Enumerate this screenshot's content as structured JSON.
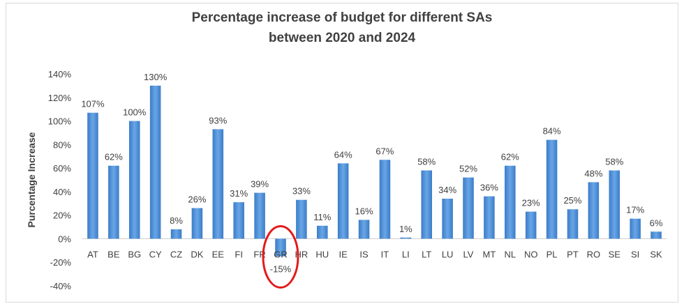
{
  "chart_data": {
    "type": "bar",
    "title": [
      "Percentage increase of budget for different SAs",
      "between 2020 and 2024"
    ],
    "ylabel": "Purcentage Increase",
    "xlabel": "",
    "ylim": [
      -40,
      140
    ],
    "yticks": [
      -40,
      -20,
      0,
      20,
      40,
      60,
      80,
      100,
      120,
      140
    ],
    "ytick_suffix": "%",
    "grid": false,
    "legend": "none",
    "bar_color": "#4f8fd6",
    "highlight_color": "#e21b1b",
    "highlight_category": "GR",
    "categories": [
      "AT",
      "BE",
      "BG",
      "CY",
      "CZ",
      "DK",
      "EE",
      "FI",
      "FR",
      "GR",
      "HR",
      "HU",
      "IE",
      "IS",
      "IT",
      "LI",
      "LT",
      "LU",
      "LV",
      "MT",
      "NL",
      "NO",
      "PL",
      "PT",
      "RO",
      "SE",
      "SI",
      "SK"
    ],
    "values": [
      107,
      62,
      100,
      130,
      8,
      26,
      93,
      31,
      39,
      -15,
      33,
      11,
      64,
      16,
      67,
      1,
      58,
      34,
      52,
      36,
      62,
      23,
      84,
      25,
      48,
      58,
      17,
      6
    ],
    "data_labels": [
      "107%",
      "62%",
      "100%",
      "130%",
      "8%",
      "26%",
      "93%",
      "31%",
      "39%",
      "-15%",
      "33%",
      "11%",
      "64%",
      "16%",
      "67%",
      "1%",
      "58%",
      "34%",
      "52%",
      "36%",
      "62%",
      "23%",
      "84%",
      "25%",
      "48%",
      "58%",
      "17%",
      "6%"
    ]
  }
}
